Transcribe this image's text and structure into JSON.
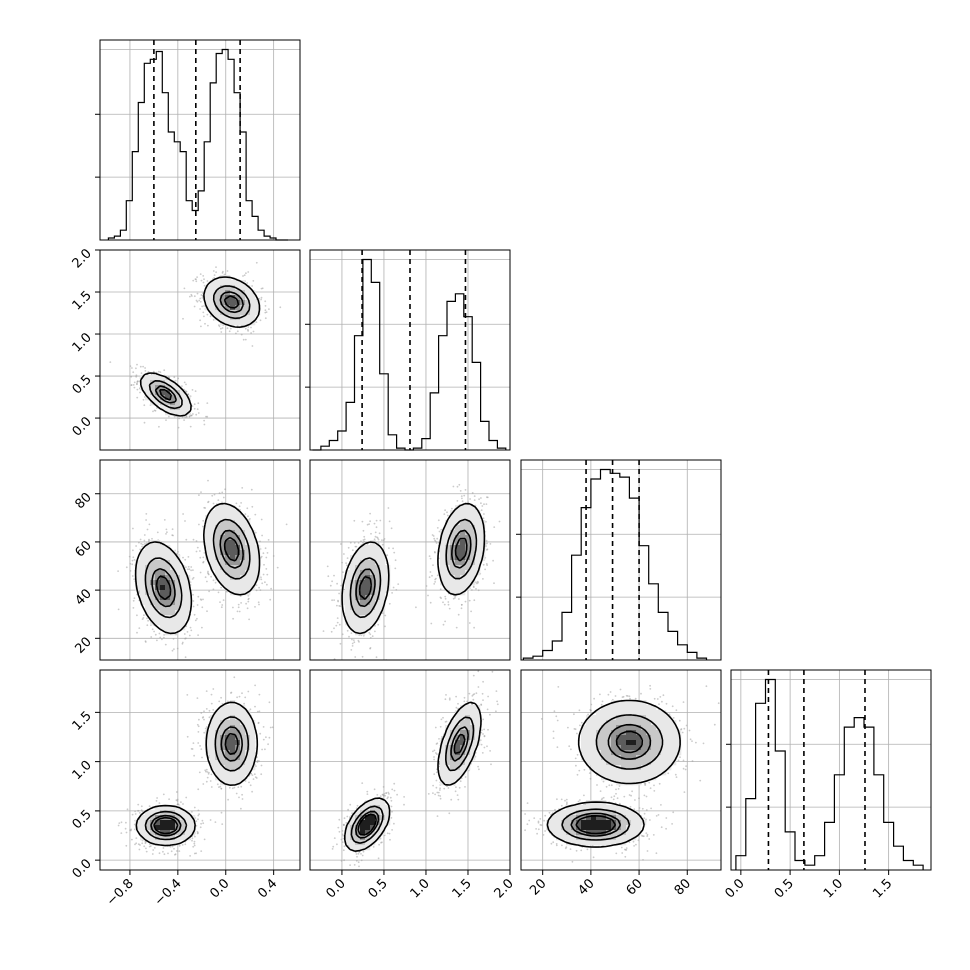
{
  "chart_data": {
    "type": "corner",
    "title": "",
    "grid": true,
    "parameters": [
      {
        "name": "p1",
        "label": "",
        "range": [
          -1.05,
          0.62
        ],
        "ticks": [
          -0.8,
          -0.4,
          0.0,
          0.4
        ],
        "tick_labels": [
          "−0.8",
          "−0.4",
          "0.0",
          "0.4"
        ]
      },
      {
        "name": "p2",
        "label": "",
        "range": [
          -0.38,
          2.0
        ],
        "ticks": [
          0.0,
          0.5,
          1.0,
          1.5,
          2.0
        ],
        "tick_labels": [
          "0.0",
          "0.5",
          "1.0",
          "1.5",
          "2.0"
        ]
      },
      {
        "name": "p3",
        "label": "",
        "range": [
          11,
          94
        ],
        "ticks": [
          20,
          40,
          60,
          80
        ],
        "tick_labels": [
          "20",
          "40",
          "60",
          "80"
        ]
      },
      {
        "name": "p4",
        "label": "",
        "range": [
          -0.1,
          1.93
        ],
        "ticks": [
          0.0,
          0.5,
          1.0,
          1.5
        ],
        "tick_labels": [
          "0.0",
          "0.5",
          "1.0",
          "1.5"
        ]
      }
    ],
    "marginals": [
      {
        "param": "p1",
        "quantiles": [
          -0.6,
          -0.25,
          0.12
        ],
        "bin_edges": [
          -0.98,
          -0.93,
          -0.88,
          -0.83,
          -0.78,
          -0.73,
          -0.68,
          -0.63,
          -0.58,
          -0.53,
          -0.48,
          -0.43,
          -0.38,
          -0.33,
          -0.28,
          -0.23,
          -0.18,
          -0.13,
          -0.08,
          -0.03,
          0.02,
          0.07,
          0.12,
          0.17,
          0.22,
          0.27,
          0.32,
          0.37,
          0.42,
          0.47,
          0.52
        ],
        "counts": [
          1,
          2,
          5,
          20,
          45,
          70,
          90,
          92,
          96,
          75,
          55,
          50,
          45,
          20,
          15,
          25,
          50,
          80,
          95,
          97,
          92,
          75,
          55,
          20,
          12,
          5,
          2,
          1,
          0,
          0
        ]
      },
      {
        "param": "p2",
        "quantiles": [
          0.24,
          0.81,
          1.47
        ],
        "bin_edges": [
          -0.35,
          -0.25,
          -0.15,
          -0.05,
          0.05,
          0.15,
          0.25,
          0.35,
          0.45,
          0.55,
          0.65,
          0.75,
          0.85,
          0.95,
          1.05,
          1.15,
          1.25,
          1.35,
          1.45,
          1.55,
          1.65,
          1.75,
          1.85,
          1.95
        ],
        "counts": [
          0,
          2,
          5,
          10,
          25,
          60,
          100,
          88,
          40,
          8,
          1,
          0,
          1,
          6,
          30,
          60,
          78,
          82,
          70,
          46,
          15,
          5,
          1
        ]
      },
      {
        "param": "p3",
        "quantiles": [
          38,
          49,
          60
        ],
        "bin_edges": [
          12,
          16,
          20,
          24,
          28,
          32,
          36,
          40,
          44,
          48,
          52,
          56,
          60,
          64,
          68,
          72,
          76,
          80,
          84,
          88
        ],
        "counts": [
          1,
          2,
          5,
          10,
          25,
          55,
          80,
          95,
          100,
          98,
          96,
          85,
          60,
          40,
          25,
          15,
          8,
          4,
          1
        ]
      },
      {
        "param": "p4",
        "quantiles": [
          0.28,
          0.64,
          1.26
        ],
        "bin_edges": [
          -0.05,
          0.05,
          0.15,
          0.25,
          0.35,
          0.45,
          0.55,
          0.65,
          0.75,
          0.85,
          0.95,
          1.05,
          1.15,
          1.25,
          1.35,
          1.45,
          1.55,
          1.65,
          1.75,
          1.85
        ],
        "counts": [
          3,
          15,
          35,
          40,
          25,
          8,
          2,
          1,
          3,
          10,
          20,
          30,
          32,
          30,
          20,
          10,
          5,
          2,
          1
        ]
      }
    ],
    "pairs": [
      {
        "x": "p1",
        "y": "p2",
        "modes": [
          {
            "cx": -0.5,
            "cy": 0.28,
            "sx": 0.1,
            "sy": 0.12,
            "rho": -0.6,
            "w": 1
          },
          {
            "cx": 0.05,
            "cy": 1.38,
            "sx": 0.11,
            "sy": 0.14,
            "rho": -0.25,
            "w": 1
          }
        ]
      },
      {
        "x": "p1",
        "y": "p3",
        "modes": [
          {
            "cx": -0.52,
            "cy": 41,
            "sx": 0.11,
            "sy": 9,
            "rho": -0.3,
            "w": 1
          },
          {
            "cx": 0.05,
            "cy": 57,
            "sx": 0.11,
            "sy": 9,
            "rho": -0.3,
            "w": 1
          }
        ]
      },
      {
        "x": "p2",
        "y": "p3",
        "modes": [
          {
            "cx": 0.28,
            "cy": 41,
            "sx": 0.13,
            "sy": 9,
            "rho": 0.25,
            "w": 1
          },
          {
            "cx": 1.42,
            "cy": 57,
            "sx": 0.13,
            "sy": 9,
            "rho": 0.25,
            "w": 1
          }
        ]
      },
      {
        "x": "p1",
        "y": "p4",
        "modes": [
          {
            "cx": -0.5,
            "cy": 0.35,
            "sx": 0.11,
            "sy": 0.09,
            "rho": 0.0,
            "w": 1.3
          },
          {
            "cx": 0.05,
            "cy": 1.18,
            "sx": 0.1,
            "sy": 0.2,
            "rho": 0.0,
            "w": 1
          }
        ]
      },
      {
        "x": "p2",
        "y": "p4",
        "modes": [
          {
            "cx": 0.3,
            "cy": 0.36,
            "sx": 0.12,
            "sy": 0.12,
            "rho": 0.5,
            "w": 1.3
          },
          {
            "cx": 1.4,
            "cy": 1.18,
            "sx": 0.12,
            "sy": 0.2,
            "rho": 0.55,
            "w": 1
          }
        ]
      },
      {
        "x": "p3",
        "y": "p4",
        "modes": [
          {
            "cx": 42,
            "cy": 0.36,
            "sx": 9,
            "sy": 0.1,
            "rho": 0.0,
            "w": 1.3
          },
          {
            "cx": 56,
            "cy": 1.2,
            "sx": 10,
            "sy": 0.2,
            "rho": 0.0,
            "w": 1
          }
        ]
      }
    ],
    "contour_levels": [
      0.11,
      0.39,
      0.68,
      0.86
    ],
    "point_color": "#a0a0a0",
    "density_colors": [
      "#e8e8e8",
      "#c8c8c8",
      "#969696",
      "#5c5c5c",
      "#1e1e1e"
    ]
  }
}
